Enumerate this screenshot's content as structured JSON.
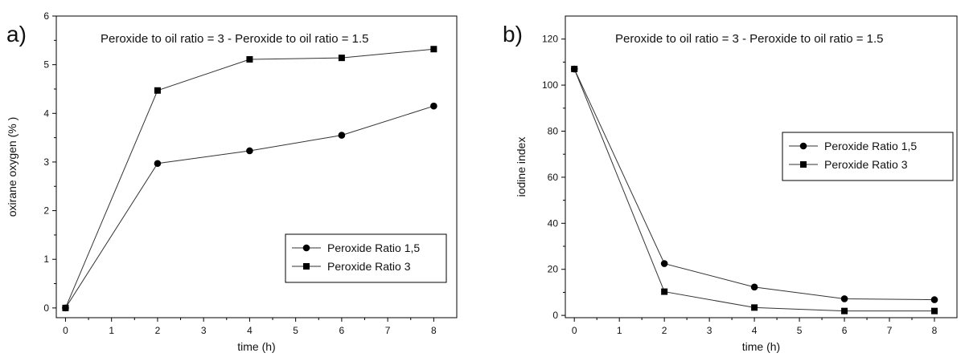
{
  "chart_data": [
    {
      "type": "line",
      "panel_label": "a)",
      "title": "Peroxide to oil ratio = 3 - Peroxide to oil ratio = 1.5",
      "xlabel": "time (h)",
      "ylabel": "oxirane oxygen (% )",
      "xlim": [
        -0.2,
        8.5
      ],
      "ylim": [
        -0.2,
        6
      ],
      "xticks": [
        0,
        1,
        2,
        3,
        4,
        5,
        6,
        7,
        8
      ],
      "yticks": [
        0,
        1,
        2,
        3,
        4,
        5,
        6
      ],
      "legend_position": "lower-right",
      "series": [
        {
          "name": "Peroxide Ratio 1,5",
          "marker": "circle",
          "color": "#000000",
          "x": [
            0,
            2,
            4,
            6,
            8
          ],
          "y": [
            0.0,
            2.97,
            3.23,
            3.55,
            4.15
          ]
        },
        {
          "name": "Peroxide Ratio 3",
          "marker": "square",
          "color": "#000000",
          "x": [
            0,
            2,
            4,
            6,
            8
          ],
          "y": [
            0.0,
            4.47,
            5.11,
            5.14,
            5.32
          ]
        }
      ]
    },
    {
      "type": "line",
      "panel_label": "b)",
      "title": "Peroxide to oil ratio = 3 - Peroxide to oil ratio = 1.5",
      "xlabel": "time (h)",
      "ylabel": "iodine index",
      "xlim": [
        -0.2,
        8.5
      ],
      "ylim": [
        -1,
        130
      ],
      "xticks": [
        0,
        1,
        2,
        3,
        4,
        5,
        6,
        7,
        8
      ],
      "yticks": [
        0,
        20,
        40,
        60,
        80,
        100,
        120
      ],
      "legend_position": "center-right",
      "series": [
        {
          "name": "Peroxide Ratio 1,5",
          "marker": "circle",
          "color": "#000000",
          "x": [
            0,
            2,
            4,
            6,
            8
          ],
          "y": [
            107,
            22.5,
            12.3,
            7.2,
            6.8
          ]
        },
        {
          "name": "Peroxide Ratio 3",
          "marker": "square",
          "color": "#000000",
          "x": [
            0,
            2,
            4,
            6,
            8
          ],
          "y": [
            107,
            10.3,
            3.4,
            1.9,
            1.9
          ]
        }
      ]
    }
  ]
}
